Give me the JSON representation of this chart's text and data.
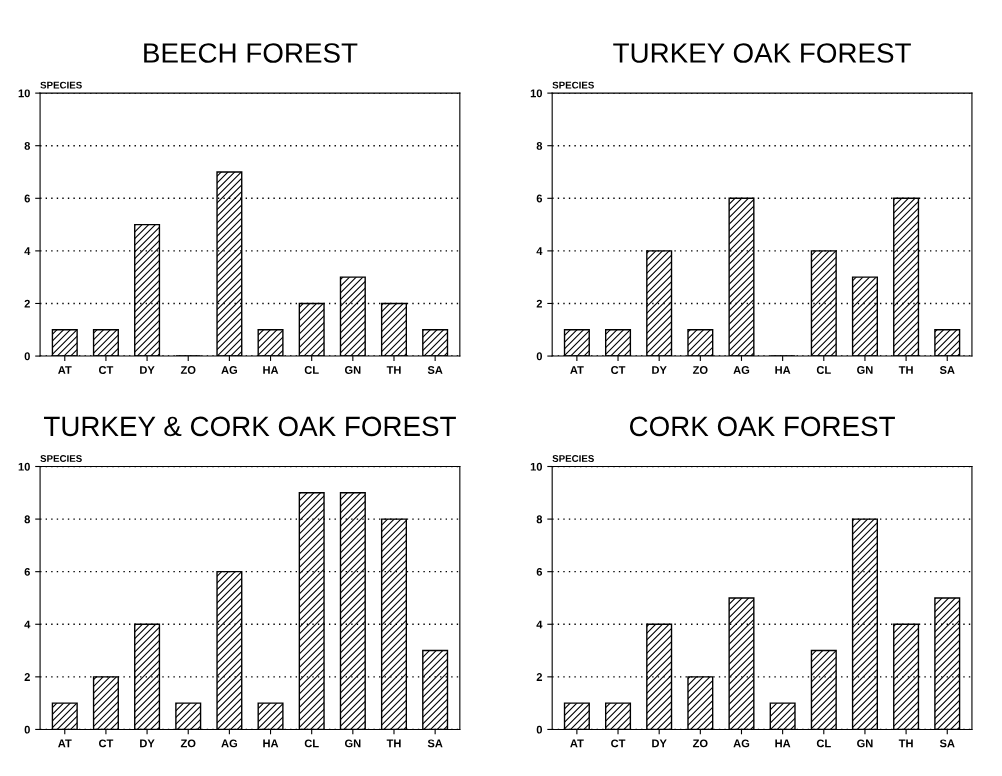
{
  "chart_data": [
    {
      "type": "bar",
      "title": "BEECH FOREST",
      "ylabel": "SPECIES",
      "categories": [
        "AT",
        "CT",
        "DY",
        "ZO",
        "AG",
        "HA",
        "CL",
        "GN",
        "TH",
        "SA"
      ],
      "values": [
        1,
        1,
        5,
        0,
        7,
        1,
        2,
        3,
        2,
        1
      ],
      "color": "#000000",
      "ylim": [
        0,
        10
      ],
      "yticks": [
        0,
        2,
        4,
        6,
        8,
        10
      ],
      "grid": "y"
    },
    {
      "type": "bar",
      "title": "TURKEY OAK FOREST",
      "ylabel": "SPECIES",
      "categories": [
        "AT",
        "CT",
        "DY",
        "ZO",
        "AG",
        "HA",
        "CL",
        "GN",
        "TH",
        "SA"
      ],
      "values": [
        1,
        1,
        4,
        1,
        6,
        0,
        4,
        3,
        6,
        1
      ],
      "color": "#000000",
      "ylim": [
        0,
        10
      ],
      "yticks": [
        0,
        2,
        4,
        6,
        8,
        10
      ],
      "grid": "y"
    },
    {
      "type": "bar",
      "title": "TURKEY & CORK OAK FOREST",
      "ylabel": "SPECIES",
      "categories": [
        "AT",
        "CT",
        "DY",
        "ZO",
        "AG",
        "HA",
        "CL",
        "GN",
        "TH",
        "SA"
      ],
      "values": [
        1,
        2,
        4,
        1,
        6,
        1,
        9,
        9,
        8,
        3
      ],
      "color": "#000000",
      "ylim": [
        0,
        10
      ],
      "yticks": [
        0,
        2,
        4,
        6,
        8,
        10
      ],
      "grid": "y"
    },
    {
      "type": "bar",
      "title": "CORK OAK FOREST",
      "ylabel": "SPECIES",
      "categories": [
        "AT",
        "CT",
        "DY",
        "ZO",
        "AG",
        "HA",
        "CL",
        "GN",
        "TH",
        "SA"
      ],
      "values": [
        1,
        1,
        4,
        2,
        5,
        1,
        3,
        8,
        4,
        5
      ],
      "color": "#000000",
      "ylim": [
        0,
        10
      ],
      "yticks": [
        0,
        2,
        4,
        6,
        8,
        10
      ],
      "grid": "y"
    }
  ]
}
